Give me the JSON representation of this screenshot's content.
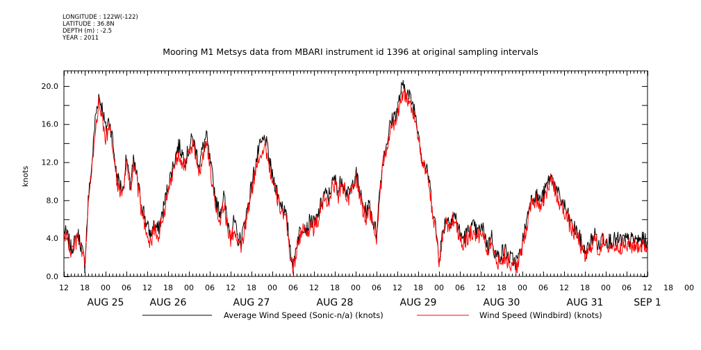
{
  "header": {
    "meta": [
      "LONGITUDE : 122W(-122)",
      "LATITUDE : 36.8N",
      "DEPTH (m) : -2.5",
      "YEAR : 2011"
    ]
  },
  "chart_data": {
    "type": "line",
    "title": "Mooring M1 Metsys data from MBARI instrument id 1396 at original sampling intervals",
    "xlabel": "",
    "ylabel": "knots",
    "ylim": [
      0,
      21.6
    ],
    "xlim_hours": [
      0,
      168
    ],
    "y_ticks": [
      "0.0",
      "4.0",
      "8.0",
      "12.0",
      "16.0",
      "20.0"
    ],
    "x_hour_labels": [
      "12",
      "18",
      "00",
      "06",
      "12",
      "18",
      "00",
      "06",
      "12",
      "18",
      "00",
      "06",
      "12",
      "18",
      "00",
      "06",
      "12",
      "18",
      "00",
      "06",
      "12",
      "18",
      "00",
      "06",
      "12",
      "18",
      "00",
      "06",
      "12",
      "18",
      "00",
      "06",
      "12"
    ],
    "date_labels": [
      "AUG 25",
      "AUG 26",
      "AUG 27",
      "AUG 28",
      "AUG 29",
      "AUG 30",
      "AUG 31",
      "SEP  1"
    ],
    "date_label_hours": [
      12,
      30,
      54,
      78,
      102,
      126,
      150,
      168
    ],
    "grid": false,
    "legend_position": "bottom",
    "series": [
      {
        "name": "Average Wind Speed (Sonic-n/a) (knots)",
        "color": "#000000",
        "keypoints": [
          [
            0,
            4.8
          ],
          [
            1,
            4.2
          ],
          [
            2,
            3.0
          ],
          [
            3,
            3.5
          ],
          [
            4,
            4.5
          ],
          [
            5,
            3.2
          ],
          [
            6,
            1.2
          ],
          [
            7,
            8.0
          ],
          [
            8,
            11.5
          ],
          [
            9,
            16.5
          ],
          [
            10,
            19.0
          ],
          [
            11,
            17.8
          ],
          [
            12,
            15.5
          ],
          [
            13,
            16.5
          ],
          [
            14,
            14.5
          ],
          [
            15,
            11.0
          ],
          [
            16,
            9.8
          ],
          [
            17,
            9.0
          ],
          [
            18,
            12.5
          ],
          [
            19,
            9.5
          ],
          [
            20,
            12.0
          ],
          [
            21,
            10.5
          ],
          [
            22,
            8.2
          ],
          [
            23,
            6.8
          ],
          [
            24,
            5.2
          ],
          [
            25,
            4.3
          ],
          [
            26,
            5.5
          ],
          [
            27,
            4.8
          ],
          [
            28,
            6.0
          ],
          [
            29,
            7.8
          ],
          [
            30,
            9.5
          ],
          [
            31,
            11.0
          ],
          [
            32,
            12.5
          ],
          [
            33,
            13.8
          ],
          [
            34,
            13.0
          ],
          [
            35,
            12.2
          ],
          [
            36,
            13.5
          ],
          [
            37,
            14.5
          ],
          [
            38,
            13.2
          ],
          [
            39,
            11.8
          ],
          [
            40,
            13.5
          ],
          [
            41,
            14.8
          ],
          [
            42,
            12.2
          ],
          [
            43,
            9.8
          ],
          [
            44,
            7.5
          ],
          [
            45,
            6.8
          ],
          [
            46,
            8.5
          ],
          [
            47,
            6.0
          ],
          [
            48,
            4.5
          ],
          [
            49,
            5.8
          ],
          [
            50,
            4.0
          ],
          [
            51,
            3.8
          ],
          [
            52,
            5.5
          ],
          [
            53,
            7.5
          ],
          [
            54,
            9.5
          ],
          [
            55,
            11.5
          ],
          [
            56,
            13.2
          ],
          [
            57,
            14.0
          ],
          [
            58,
            14.5
          ],
          [
            59,
            12.5
          ],
          [
            60,
            10.5
          ],
          [
            61,
            9.5
          ],
          [
            62,
            8.0
          ],
          [
            63,
            7.5
          ],
          [
            64,
            6.2
          ],
          [
            65,
            3.5
          ],
          [
            66,
            1.0
          ],
          [
            67,
            3.5
          ],
          [
            68,
            4.8
          ],
          [
            69,
            5.5
          ],
          [
            70,
            5.0
          ],
          [
            71,
            6.0
          ],
          [
            72,
            5.5
          ],
          [
            73,
            6.2
          ],
          [
            74,
            7.5
          ],
          [
            75,
            8.8
          ],
          [
            76,
            8.2
          ],
          [
            77,
            9.5
          ],
          [
            78,
            10.2
          ],
          [
            79,
            9.0
          ],
          [
            80,
            10.5
          ],
          [
            81,
            9.2
          ],
          [
            82,
            8.5
          ],
          [
            83,
            9.5
          ],
          [
            84,
            11.0
          ],
          [
            85,
            9.2
          ],
          [
            86,
            7.5
          ],
          [
            87,
            6.8
          ],
          [
            88,
            7.5
          ],
          [
            89,
            5.8
          ],
          [
            90,
            4.5
          ],
          [
            91,
            9.5
          ],
          [
            92,
            12.5
          ],
          [
            93,
            14.2
          ],
          [
            94,
            16.0
          ],
          [
            95,
            16.8
          ],
          [
            96,
            17.5
          ],
          [
            97,
            19.5
          ],
          [
            98,
            20.0
          ],
          [
            99,
            19.2
          ],
          [
            100,
            18.5
          ],
          [
            101,
            17.5
          ],
          [
            102,
            15.5
          ],
          [
            103,
            12.5
          ],
          [
            104,
            11.5
          ],
          [
            105,
            10.5
          ],
          [
            106,
            7.5
          ],
          [
            107,
            5.2
          ],
          [
            108,
            2.0
          ],
          [
            109,
            4.5
          ],
          [
            110,
            6.2
          ],
          [
            111,
            5.8
          ],
          [
            112,
            6.5
          ],
          [
            113,
            6.0
          ],
          [
            114,
            4.5
          ],
          [
            115,
            4.0
          ],
          [
            116,
            4.5
          ],
          [
            117,
            5.0
          ],
          [
            118,
            5.2
          ],
          [
            119,
            4.5
          ],
          [
            120,
            5.0
          ],
          [
            121,
            4.8
          ],
          [
            122,
            3.0
          ],
          [
            123,
            4.5
          ],
          [
            124,
            2.5
          ],
          [
            125,
            2.0
          ],
          [
            126,
            2.5
          ],
          [
            127,
            2.8
          ],
          [
            128,
            2.0
          ],
          [
            129,
            1.8
          ],
          [
            130,
            1.5
          ],
          [
            131,
            2.0
          ],
          [
            132,
            3.5
          ],
          [
            133,
            5.5
          ],
          [
            134,
            7.5
          ],
          [
            135,
            8.5
          ],
          [
            136,
            8.5
          ],
          [
            137,
            8.0
          ],
          [
            138,
            8.5
          ],
          [
            139,
            9.5
          ],
          [
            140,
            10.5
          ],
          [
            141,
            10.0
          ],
          [
            142,
            8.8
          ],
          [
            143,
            8.0
          ],
          [
            144,
            7.5
          ],
          [
            145,
            6.5
          ],
          [
            146,
            5.5
          ],
          [
            147,
            5.0
          ],
          [
            148,
            4.5
          ],
          [
            149,
            3.5
          ],
          [
            150,
            2.5
          ],
          [
            151,
            3.0
          ],
          [
            152,
            4.0
          ],
          [
            153,
            4.5
          ],
          [
            154,
            3.0
          ],
          [
            155,
            4.2
          ],
          [
            156,
            3.8
          ],
          [
            168,
            3.8
          ]
        ]
      },
      {
        "name": "Wind Speed (Windbird) (knots)",
        "color": "#ff0000",
        "keypoints": [
          [
            0,
            4.5
          ],
          [
            1,
            3.8
          ],
          [
            2,
            2.5
          ],
          [
            3,
            3.2
          ],
          [
            4,
            4.0
          ],
          [
            5,
            2.8
          ],
          [
            6,
            0.8
          ],
          [
            7,
            7.5
          ],
          [
            8,
            11.0
          ],
          [
            9,
            15.5
          ],
          [
            10,
            18.0
          ],
          [
            11,
            16.8
          ],
          [
            12,
            14.5
          ],
          [
            13,
            15.5
          ],
          [
            14,
            13.8
          ],
          [
            15,
            10.5
          ],
          [
            16,
            9.0
          ],
          [
            17,
            8.5
          ],
          [
            18,
            12.0
          ],
          [
            19,
            9.0
          ],
          [
            20,
            11.5
          ],
          [
            21,
            10.0
          ],
          [
            22,
            7.5
          ],
          [
            23,
            6.0
          ],
          [
            24,
            4.5
          ],
          [
            25,
            3.5
          ],
          [
            26,
            5.0
          ],
          [
            27,
            4.0
          ],
          [
            28,
            5.5
          ],
          [
            29,
            7.0
          ],
          [
            30,
            8.8
          ],
          [
            31,
            10.5
          ],
          [
            32,
            12.0
          ],
          [
            33,
            13.0
          ],
          [
            34,
            12.2
          ],
          [
            35,
            11.5
          ],
          [
            36,
            12.8
          ],
          [
            37,
            13.8
          ],
          [
            38,
            12.5
          ],
          [
            39,
            11.0
          ],
          [
            40,
            12.8
          ],
          [
            41,
            14.0
          ],
          [
            42,
            11.5
          ],
          [
            43,
            9.0
          ],
          [
            44,
            6.8
          ],
          [
            45,
            6.0
          ],
          [
            46,
            7.8
          ],
          [
            47,
            5.2
          ],
          [
            48,
            3.8
          ],
          [
            49,
            5.0
          ],
          [
            50,
            3.2
          ],
          [
            51,
            3.0
          ],
          [
            52,
            4.8
          ],
          [
            53,
            6.8
          ],
          [
            54,
            8.8
          ],
          [
            55,
            10.8
          ],
          [
            56,
            12.5
          ],
          [
            57,
            13.2
          ],
          [
            58,
            13.8
          ],
          [
            59,
            11.8
          ],
          [
            60,
            9.8
          ],
          [
            61,
            8.8
          ],
          [
            62,
            7.5
          ],
          [
            63,
            6.8
          ],
          [
            64,
            5.5
          ],
          [
            65,
            2.8
          ],
          [
            66,
            0.5
          ],
          [
            67,
            3.0
          ],
          [
            68,
            4.2
          ],
          [
            69,
            5.0
          ],
          [
            70,
            4.5
          ],
          [
            71,
            5.5
          ],
          [
            72,
            5.0
          ],
          [
            73,
            5.8
          ],
          [
            74,
            7.0
          ],
          [
            75,
            8.2
          ],
          [
            76,
            7.8
          ],
          [
            77,
            9.0
          ],
          [
            78,
            9.8
          ],
          [
            79,
            8.5
          ],
          [
            80,
            10.0
          ],
          [
            81,
            8.8
          ],
          [
            82,
            8.0
          ],
          [
            83,
            9.0
          ],
          [
            84,
            10.5
          ],
          [
            85,
            8.8
          ],
          [
            86,
            7.0
          ],
          [
            87,
            6.2
          ],
          [
            88,
            7.0
          ],
          [
            89,
            5.2
          ],
          [
            90,
            4.0
          ],
          [
            91,
            9.0
          ],
          [
            92,
            12.0
          ],
          [
            93,
            13.5
          ],
          [
            94,
            15.2
          ],
          [
            95,
            16.0
          ],
          [
            96,
            17.0
          ],
          [
            97,
            19.0
          ],
          [
            98,
            19.2
          ],
          [
            99,
            18.5
          ],
          [
            100,
            17.8
          ],
          [
            101,
            16.8
          ],
          [
            102,
            14.8
          ],
          [
            103,
            12.0
          ],
          [
            104,
            11.0
          ],
          [
            105,
            10.0
          ],
          [
            106,
            7.0
          ],
          [
            107,
            4.8
          ],
          [
            108,
            1.5
          ],
          [
            109,
            4.0
          ],
          [
            110,
            5.8
          ],
          [
            111,
            5.2
          ],
          [
            112,
            6.0
          ],
          [
            113,
            5.5
          ],
          [
            114,
            4.0
          ],
          [
            115,
            3.5
          ],
          [
            116,
            4.0
          ],
          [
            117,
            4.5
          ],
          [
            118,
            4.8
          ],
          [
            119,
            4.0
          ],
          [
            120,
            4.5
          ],
          [
            121,
            4.2
          ],
          [
            122,
            2.5
          ],
          [
            123,
            4.0
          ],
          [
            124,
            2.0
          ],
          [
            125,
            1.5
          ],
          [
            126,
            2.0
          ],
          [
            127,
            2.2
          ],
          [
            128,
            1.5
          ],
          [
            129,
            1.2
          ],
          [
            130,
            1.0
          ],
          [
            131,
            1.5
          ],
          [
            132,
            3.0
          ],
          [
            133,
            5.0
          ],
          [
            134,
            7.0
          ],
          [
            135,
            8.0
          ],
          [
            136,
            8.0
          ],
          [
            137,
            7.5
          ],
          [
            138,
            8.0
          ],
          [
            139,
            9.0
          ],
          [
            140,
            10.0
          ],
          [
            141,
            9.5
          ],
          [
            142,
            8.2
          ],
          [
            143,
            7.5
          ],
          [
            144,
            7.0
          ],
          [
            145,
            6.0
          ],
          [
            146,
            5.0
          ],
          [
            147,
            4.5
          ],
          [
            148,
            4.0
          ],
          [
            149,
            3.0
          ],
          [
            150,
            2.0
          ],
          [
            151,
            2.5
          ],
          [
            152,
            3.5
          ],
          [
            153,
            4.0
          ],
          [
            154,
            2.5
          ],
          [
            155,
            3.8
          ],
          [
            156,
            3.2
          ],
          [
            168,
            3.2
          ]
        ]
      }
    ]
  }
}
